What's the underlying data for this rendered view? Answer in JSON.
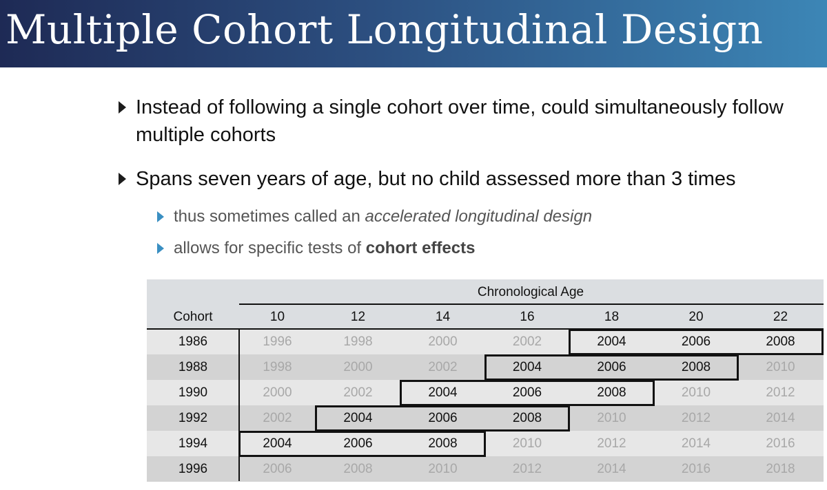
{
  "slide": {
    "title": "Multiple Cohort Longitudinal Design",
    "bullets": [
      "Instead of following a single cohort over time, could simultaneously follow multiple cohorts",
      "Spans seven years of age, but no child assessed more than 3 times"
    ],
    "subbullets": {
      "s1_prefix": "thus sometimes called an ",
      "s1_emph": "accelerated longitudinal design",
      "s2_prefix": "allows for specific tests of ",
      "s2_bold": "cohort effects"
    }
  },
  "table": {
    "super_header": "Chronological Age",
    "cohort_header": "Cohort",
    "ages": [
      "10",
      "12",
      "14",
      "16",
      "18",
      "20",
      "22"
    ],
    "rows": [
      {
        "cohort": "1986",
        "years": [
          "1996",
          "1998",
          "2000",
          "2002",
          "2004",
          "2006",
          "2008"
        ],
        "start": 4
      },
      {
        "cohort": "1988",
        "years": [
          "1998",
          "2000",
          "2002",
          "2004",
          "2006",
          "2008",
          "2010"
        ],
        "start": 3
      },
      {
        "cohort": "1990",
        "years": [
          "2000",
          "2002",
          "2004",
          "2006",
          "2008",
          "2010",
          "2012"
        ],
        "start": 2
      },
      {
        "cohort": "1992",
        "years": [
          "2002",
          "2004",
          "2006",
          "2008",
          "2010",
          "2012",
          "2014"
        ],
        "start": 1
      },
      {
        "cohort": "1994",
        "years": [
          "2004",
          "2006",
          "2008",
          "2010",
          "2012",
          "2014",
          "2016"
        ],
        "start": 0
      },
      {
        "cohort": "1996",
        "years": [
          "2006",
          "2008",
          "2010",
          "2012",
          "2014",
          "2016",
          "2018"
        ],
        "start": -1
      }
    ]
  }
}
